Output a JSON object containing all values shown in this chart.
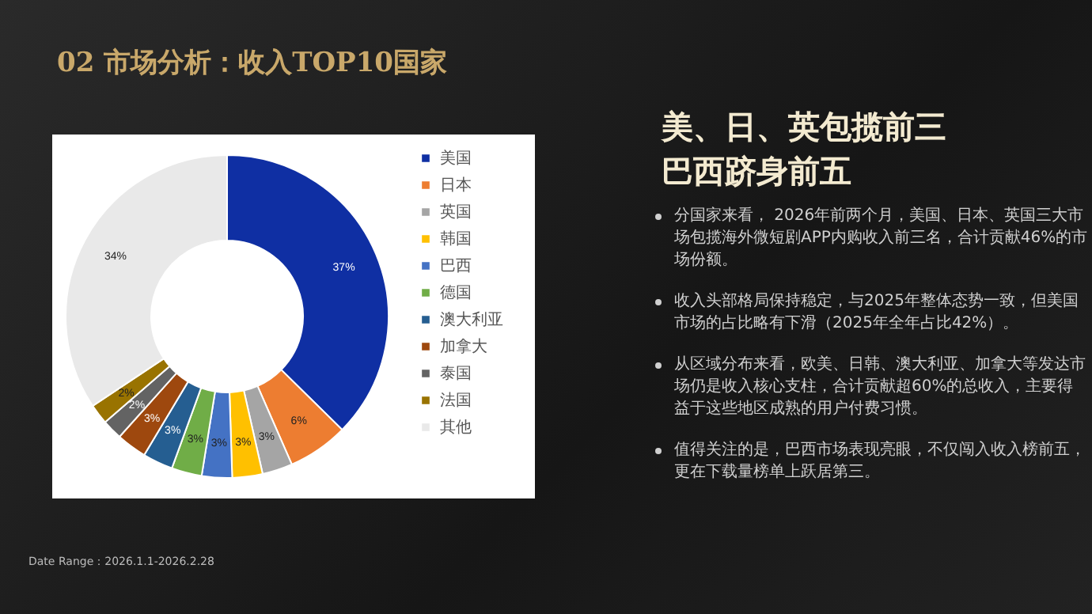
{
  "chart_data": {
    "type": "donut",
    "title": "02 市场分析：收入TOP10国家",
    "subtitle": "美、日、英包揽前三巴西跻身前五",
    "categories": [
      "美国",
      "日本",
      "英国",
      "韩国",
      "巴西",
      "德国",
      "澳大利亚",
      "加拿大",
      "泰国",
      "法国",
      "其他"
    ],
    "values": [
      37,
      6,
      3,
      3,
      3,
      3,
      3,
      3,
      2,
      2,
      34
    ],
    "value_labels": [
      "37%",
      "6%",
      "3%",
      "3%",
      "3%",
      "3%",
      "3%",
      "3%",
      "2%",
      "2%",
      "34%"
    ],
    "colors": [
      "#0f2fa3",
      "#ed7d31",
      "#a5a5a5",
      "#ffc000",
      "#4472c4",
      "#70ad47",
      "#255e91",
      "#9e480e",
      "#636363",
      "#997300",
      "#e9e9e9"
    ],
    "legend": "right",
    "annotations": [
      "分国家来看， 2026年前两个月，美国、日本、英国三大市场包揽海外微短剧APP内购收入前三名，合计贡献46%的市场份额。",
      "收入头部格局保持稳定，与2025年整体态势一致，但美国市场的占比略有下滑（2025年全年占比42%）。",
      "从区域分布来看，欧美、日韩、澳大利亚、加拿大等发达市场仍是收入核心支柱，合计贡献超60%的总收入，主要得益于这些地区成熟的用户付费习惯。",
      "值得关注的是，巴西市场表现亮眼，不仅闯入收入榜前五，更在下载量榜单上跃居第三。",
      "Date Range：2026.1.1-2026.2.28"
    ]
  }
}
